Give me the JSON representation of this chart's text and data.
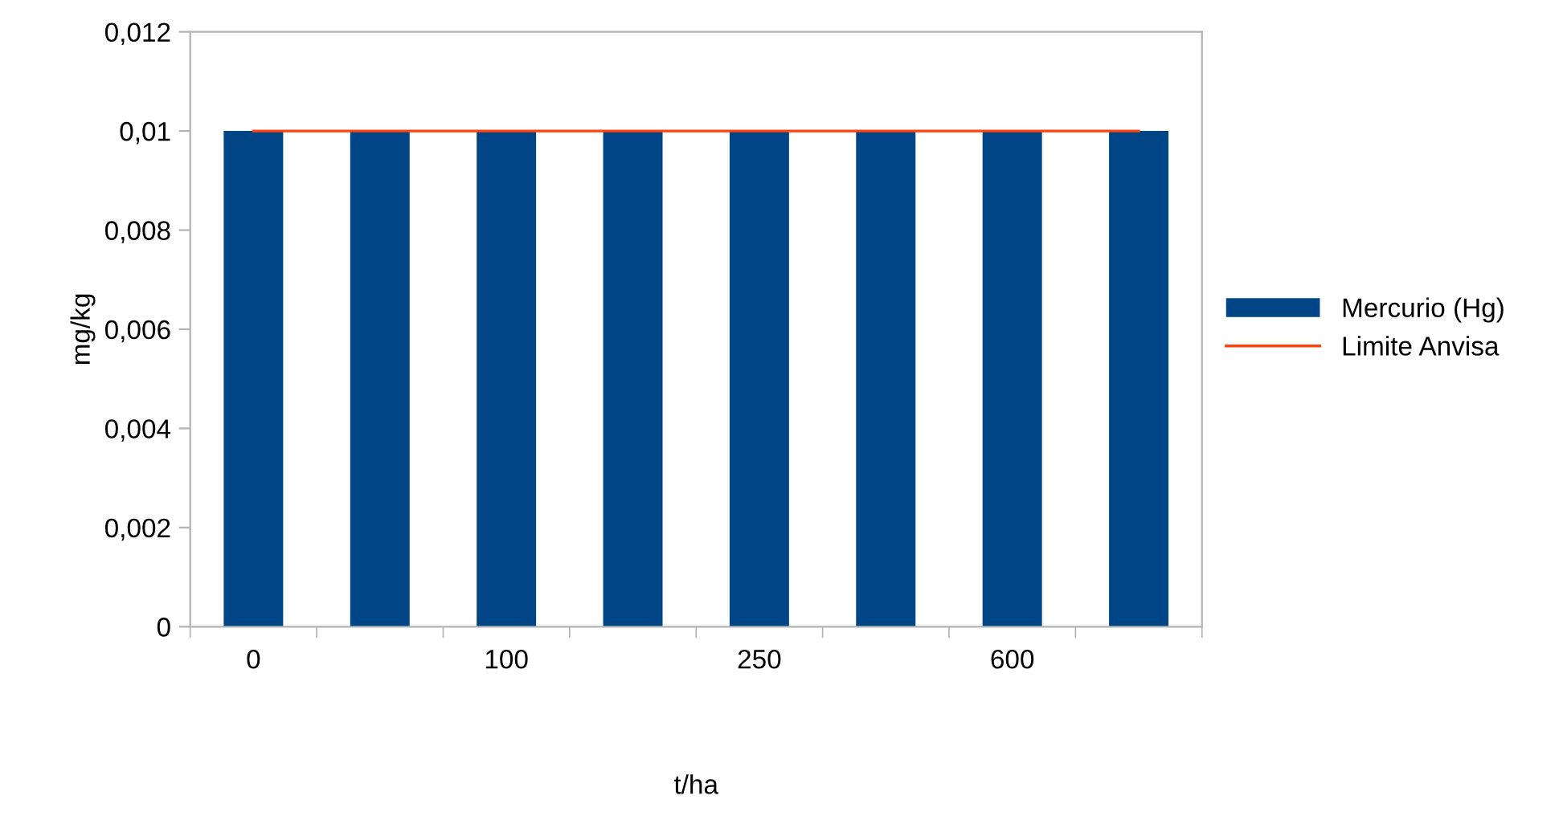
{
  "chart_data": {
    "type": "bar",
    "xlabel": "t/ha",
    "ylabel": "mg/kg",
    "categories": [
      "0",
      null,
      "100",
      null,
      "250",
      null,
      "600",
      null
    ],
    "series": [
      {
        "name": "Mercurio (Hg)",
        "color": "#004586",
        "values": [
          0.01,
          0.01,
          0.01,
          0.01,
          0.01,
          0.01,
          0.01,
          0.01
        ]
      },
      {
        "name": "Limite Anvisa",
        "type": "line",
        "color": "#ff420e",
        "values": [
          0.01,
          0.01,
          0.01,
          0.01,
          0.01,
          0.01,
          0.01,
          0.01
        ]
      }
    ],
    "ylim": [
      0,
      0.012
    ],
    "yticks": [
      {
        "value": 0,
        "label": "0"
      },
      {
        "value": 0.002,
        "label": "0,002"
      },
      {
        "value": 0.004,
        "label": "0,004"
      },
      {
        "value": 0.006,
        "label": "0,006"
      },
      {
        "value": 0.008,
        "label": "0,008"
      },
      {
        "value": 0.01,
        "label": "0,01"
      },
      {
        "value": 0.012,
        "label": "0,012"
      }
    ],
    "grid": false,
    "legend": "right",
    "marker": "none",
    "line_style": "solid"
  }
}
